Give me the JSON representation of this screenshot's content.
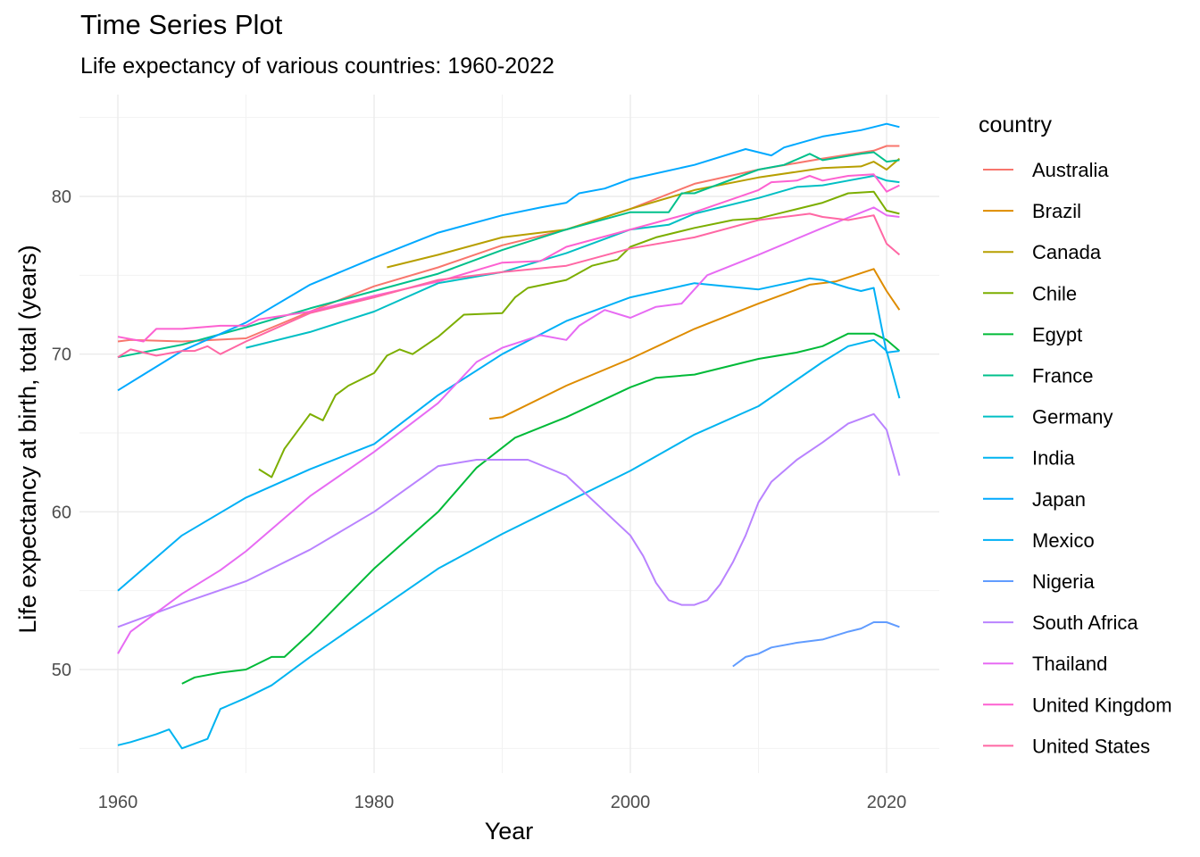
{
  "chart_data": {
    "type": "line",
    "title": "Time Series Plot",
    "subtitle": "Life expectancy of various countries: 1960-2022",
    "xlabel": "Year",
    "ylabel": "Life expectancy at birth, total (years)",
    "xlim": [
      1960,
      2021
    ],
    "ylim": [
      43,
      86
    ],
    "x_ticks": [
      1960,
      1980,
      2000,
      2020
    ],
    "y_ticks": [
      50,
      60,
      70,
      80
    ],
    "grid": true,
    "legend_title": "country",
    "legend_position": "right",
    "series": [
      {
        "name": "Australia",
        "color": "#F8766D",
        "points": [
          [
            1960,
            70.8
          ],
          [
            1961,
            70.9
          ],
          [
            1965,
            70.8
          ],
          [
            1970,
            71.0
          ],
          [
            1975,
            72.7
          ],
          [
            1980,
            74.3
          ],
          [
            1985,
            75.5
          ],
          [
            1990,
            76.9
          ],
          [
            1995,
            77.9
          ],
          [
            2000,
            79.2
          ],
          [
            2005,
            80.8
          ],
          [
            2010,
            81.7
          ],
          [
            2015,
            82.4
          ],
          [
            2019,
            82.9
          ],
          [
            2020,
            83.2
          ],
          [
            2021,
            83.2
          ]
        ]
      },
      {
        "name": "Brazil",
        "color": "#DE8C00",
        "points": [
          [
            1989,
            65.9
          ],
          [
            1990,
            66.0
          ],
          [
            1995,
            68.0
          ],
          [
            2000,
            69.7
          ],
          [
            2005,
            71.6
          ],
          [
            2010,
            73.2
          ],
          [
            2014,
            74.4
          ],
          [
            2016,
            74.6
          ],
          [
            2019,
            75.4
          ],
          [
            2020,
            74.0
          ],
          [
            2021,
            72.8
          ]
        ]
      },
      {
        "name": "Canada",
        "color": "#B79F00",
        "points": [
          [
            1981,
            75.5
          ],
          [
            1985,
            76.3
          ],
          [
            1990,
            77.4
          ],
          [
            1995,
            77.9
          ],
          [
            2000,
            79.2
          ],
          [
            2005,
            80.4
          ],
          [
            2010,
            81.2
          ],
          [
            2015,
            81.8
          ],
          [
            2018,
            81.9
          ],
          [
            2019,
            82.2
          ],
          [
            2020,
            81.7
          ],
          [
            2021,
            82.4
          ]
        ]
      },
      {
        "name": "Chile",
        "color": "#7CAE00",
        "points": [
          [
            1971,
            62.7
          ],
          [
            1972,
            62.2
          ],
          [
            1973,
            64.0
          ],
          [
            1975,
            66.2
          ],
          [
            1976,
            65.8
          ],
          [
            1977,
            67.4
          ],
          [
            1978,
            68.0
          ],
          [
            1980,
            68.8
          ],
          [
            1981,
            69.9
          ],
          [
            1982,
            70.3
          ],
          [
            1983,
            70.0
          ],
          [
            1985,
            71.1
          ],
          [
            1987,
            72.5
          ],
          [
            1990,
            72.6
          ],
          [
            1991,
            73.6
          ],
          [
            1992,
            74.2
          ],
          [
            1995,
            74.7
          ],
          [
            1997,
            75.6
          ],
          [
            1999,
            76.0
          ],
          [
            2000,
            76.8
          ],
          [
            2002,
            77.4
          ],
          [
            2005,
            78.0
          ],
          [
            2008,
            78.5
          ],
          [
            2010,
            78.6
          ],
          [
            2012,
            79.0
          ],
          [
            2015,
            79.6
          ],
          [
            2017,
            80.2
          ],
          [
            2019,
            80.3
          ],
          [
            2020,
            79.1
          ],
          [
            2021,
            78.9
          ]
        ]
      },
      {
        "name": "Egypt",
        "color": "#00BA38",
        "points": [
          [
            1965,
            49.1
          ],
          [
            1966,
            49.5
          ],
          [
            1968,
            49.8
          ],
          [
            1970,
            50.0
          ],
          [
            1972,
            50.8
          ],
          [
            1973,
            50.8
          ],
          [
            1975,
            52.3
          ],
          [
            1980,
            56.4
          ],
          [
            1985,
            60.0
          ],
          [
            1988,
            62.8
          ],
          [
            1991,
            64.7
          ],
          [
            1995,
            66.0
          ],
          [
            2000,
            67.9
          ],
          [
            2002,
            68.5
          ],
          [
            2005,
            68.7
          ],
          [
            2010,
            69.7
          ],
          [
            2013,
            70.1
          ],
          [
            2015,
            70.5
          ],
          [
            2017,
            71.3
          ],
          [
            2019,
            71.3
          ],
          [
            2020,
            70.9
          ],
          [
            2021,
            70.2
          ]
        ]
      },
      {
        "name": "France",
        "color": "#00C08B",
        "points": [
          [
            1960,
            69.8
          ],
          [
            1965,
            70.6
          ],
          [
            1970,
            71.7
          ],
          [
            1975,
            72.9
          ],
          [
            1980,
            74.0
          ],
          [
            1985,
            75.1
          ],
          [
            1990,
            76.6
          ],
          [
            1995,
            77.9
          ],
          [
            2000,
            79.0
          ],
          [
            2003,
            79.0
          ],
          [
            2004,
            80.2
          ],
          [
            2005,
            80.2
          ],
          [
            2010,
            81.7
          ],
          [
            2012,
            82.0
          ],
          [
            2014,
            82.7
          ],
          [
            2015,
            82.3
          ],
          [
            2018,
            82.7
          ],
          [
            2019,
            82.8
          ],
          [
            2020,
            82.2
          ],
          [
            2021,
            82.3
          ]
        ]
      },
      {
        "name": "Germany",
        "color": "#00BFC4",
        "points": [
          [
            1970,
            70.4
          ],
          [
            1975,
            71.4
          ],
          [
            1980,
            72.7
          ],
          [
            1985,
            74.5
          ],
          [
            1990,
            75.2
          ],
          [
            1995,
            76.4
          ],
          [
            2000,
            77.9
          ],
          [
            2003,
            78.2
          ],
          [
            2005,
            78.9
          ],
          [
            2010,
            79.9
          ],
          [
            2013,
            80.6
          ],
          [
            2015,
            80.7
          ],
          [
            2017,
            81.0
          ],
          [
            2019,
            81.3
          ],
          [
            2020,
            81.0
          ],
          [
            2021,
            80.9
          ]
        ]
      },
      {
        "name": "India",
        "color": "#00B4F0",
        "points": [
          [
            1960,
            45.2
          ],
          [
            1961,
            45.4
          ],
          [
            1963,
            45.9
          ],
          [
            1964,
            46.2
          ],
          [
            1965,
            45.0
          ],
          [
            1967,
            45.6
          ],
          [
            1968,
            47.5
          ],
          [
            1970,
            48.2
          ],
          [
            1972,
            49.0
          ],
          [
            1975,
            50.8
          ],
          [
            1980,
            53.6
          ],
          [
            1985,
            56.4
          ],
          [
            1990,
            58.6
          ],
          [
            1995,
            60.6
          ],
          [
            2000,
            62.6
          ],
          [
            2005,
            64.9
          ],
          [
            2010,
            66.7
          ],
          [
            2015,
            69.5
          ],
          [
            2017,
            70.5
          ],
          [
            2019,
            70.9
          ],
          [
            2020,
            70.2
          ],
          [
            2021,
            67.2
          ]
        ]
      },
      {
        "name": "Japan",
        "color": "#00A9FF",
        "points": [
          [
            1960,
            67.7
          ],
          [
            1962,
            68.7
          ],
          [
            1965,
            70.2
          ],
          [
            1970,
            72.0
          ],
          [
            1975,
            74.4
          ],
          [
            1980,
            76.1
          ],
          [
            1985,
            77.7
          ],
          [
            1990,
            78.8
          ],
          [
            1993,
            79.3
          ],
          [
            1995,
            79.6
          ],
          [
            1996,
            80.2
          ],
          [
            1998,
            80.5
          ],
          [
            2000,
            81.1
          ],
          [
            2005,
            82.0
          ],
          [
            2009,
            83.0
          ],
          [
            2011,
            82.6
          ],
          [
            2012,
            83.1
          ],
          [
            2015,
            83.8
          ],
          [
            2018,
            84.2
          ],
          [
            2019,
            84.4
          ],
          [
            2020,
            84.6
          ],
          [
            2021,
            84.4
          ]
        ]
      },
      {
        "name": "Mexico",
        "color": "#00B0F6",
        "points": [
          [
            1960,
            55.0
          ],
          [
            1965,
            58.5
          ],
          [
            1970,
            60.9
          ],
          [
            1975,
            62.7
          ],
          [
            1980,
            64.3
          ],
          [
            1985,
            67.4
          ],
          [
            1990,
            70.0
          ],
          [
            1995,
            72.1
          ],
          [
            2000,
            73.6
          ],
          [
            2005,
            74.5
          ],
          [
            2010,
            74.1
          ],
          [
            2014,
            74.8
          ],
          [
            2015,
            74.7
          ],
          [
            2017,
            74.2
          ],
          [
            2018,
            74.0
          ],
          [
            2019,
            74.2
          ],
          [
            2020,
            70.1
          ],
          [
            2021,
            70.2
          ]
        ]
      },
      {
        "name": "Nigeria",
        "color": "#619CFF",
        "points": [
          [
            2008,
            50.2
          ],
          [
            2009,
            50.8
          ],
          [
            2010,
            51.0
          ],
          [
            2011,
            51.4
          ],
          [
            2013,
            51.7
          ],
          [
            2015,
            51.9
          ],
          [
            2017,
            52.4
          ],
          [
            2018,
            52.6
          ],
          [
            2019,
            53.0
          ],
          [
            2020,
            53.0
          ],
          [
            2021,
            52.7
          ]
        ]
      },
      {
        "name": "South Africa",
        "color": "#B983FF",
        "points": [
          [
            1960,
            52.7
          ],
          [
            1965,
            54.2
          ],
          [
            1970,
            55.6
          ],
          [
            1975,
            57.6
          ],
          [
            1980,
            60.0
          ],
          [
            1985,
            62.9
          ],
          [
            1988,
            63.3
          ],
          [
            1992,
            63.3
          ],
          [
            1995,
            62.3
          ],
          [
            2000,
            58.5
          ],
          [
            2001,
            57.2
          ],
          [
            2002,
            55.5
          ],
          [
            2003,
            54.4
          ],
          [
            2004,
            54.1
          ],
          [
            2005,
            54.1
          ],
          [
            2006,
            54.4
          ],
          [
            2007,
            55.4
          ],
          [
            2008,
            56.8
          ],
          [
            2009,
            58.5
          ],
          [
            2010,
            60.6
          ],
          [
            2011,
            61.9
          ],
          [
            2013,
            63.3
          ],
          [
            2015,
            64.4
          ],
          [
            2017,
            65.6
          ],
          [
            2019,
            66.2
          ],
          [
            2020,
            65.2
          ],
          [
            2021,
            62.3
          ]
        ]
      },
      {
        "name": "Thailand",
        "color": "#E76BF3",
        "points": [
          [
            1960,
            51.0
          ],
          [
            1961,
            52.4
          ],
          [
            1965,
            54.8
          ],
          [
            1968,
            56.3
          ],
          [
            1970,
            57.5
          ],
          [
            1975,
            61.0
          ],
          [
            1980,
            63.8
          ],
          [
            1985,
            66.9
          ],
          [
            1988,
            69.5
          ],
          [
            1990,
            70.4
          ],
          [
            1993,
            71.2
          ],
          [
            1995,
            70.9
          ],
          [
            1996,
            71.8
          ],
          [
            1998,
            72.8
          ],
          [
            2000,
            72.3
          ],
          [
            2002,
            73.0
          ],
          [
            2004,
            73.2
          ],
          [
            2006,
            75.0
          ],
          [
            2010,
            76.3
          ],
          [
            2015,
            78.0
          ],
          [
            2019,
            79.3
          ],
          [
            2020,
            78.8
          ],
          [
            2021,
            78.7
          ]
        ]
      },
      {
        "name": "United Kingdom",
        "color": "#FD61D1",
        "points": [
          [
            1960,
            71.1
          ],
          [
            1962,
            70.8
          ],
          [
            1963,
            71.6
          ],
          [
            1965,
            71.6
          ],
          [
            1968,
            71.8
          ],
          [
            1970,
            71.8
          ],
          [
            1971,
            72.2
          ],
          [
            1975,
            72.7
          ],
          [
            1980,
            73.7
          ],
          [
            1985,
            74.6
          ],
          [
            1990,
            75.8
          ],
          [
            1993,
            75.9
          ],
          [
            1995,
            76.8
          ],
          [
            2000,
            77.9
          ],
          [
            2005,
            79.0
          ],
          [
            2010,
            80.4
          ],
          [
            2011,
            80.9
          ],
          [
            2013,
            81.0
          ],
          [
            2014,
            81.3
          ],
          [
            2015,
            81.0
          ],
          [
            2017,
            81.3
          ],
          [
            2019,
            81.4
          ],
          [
            2020,
            80.3
          ],
          [
            2021,
            80.7
          ]
        ]
      },
      {
        "name": "United States",
        "color": "#FF67A4",
        "points": [
          [
            1960,
            69.8
          ],
          [
            1961,
            70.3
          ],
          [
            1963,
            69.9
          ],
          [
            1965,
            70.2
          ],
          [
            1966,
            70.2
          ],
          [
            1967,
            70.5
          ],
          [
            1968,
            70.0
          ],
          [
            1970,
            70.8
          ],
          [
            1975,
            72.6
          ],
          [
            1980,
            73.6
          ],
          [
            1985,
            74.7
          ],
          [
            1990,
            75.2
          ],
          [
            1995,
            75.6
          ],
          [
            2000,
            76.7
          ],
          [
            2005,
            77.4
          ],
          [
            2010,
            78.5
          ],
          [
            2014,
            78.9
          ],
          [
            2015,
            78.7
          ],
          [
            2017,
            78.5
          ],
          [
            2019,
            78.8
          ],
          [
            2020,
            77.0
          ],
          [
            2021,
            76.3
          ]
        ]
      }
    ]
  }
}
